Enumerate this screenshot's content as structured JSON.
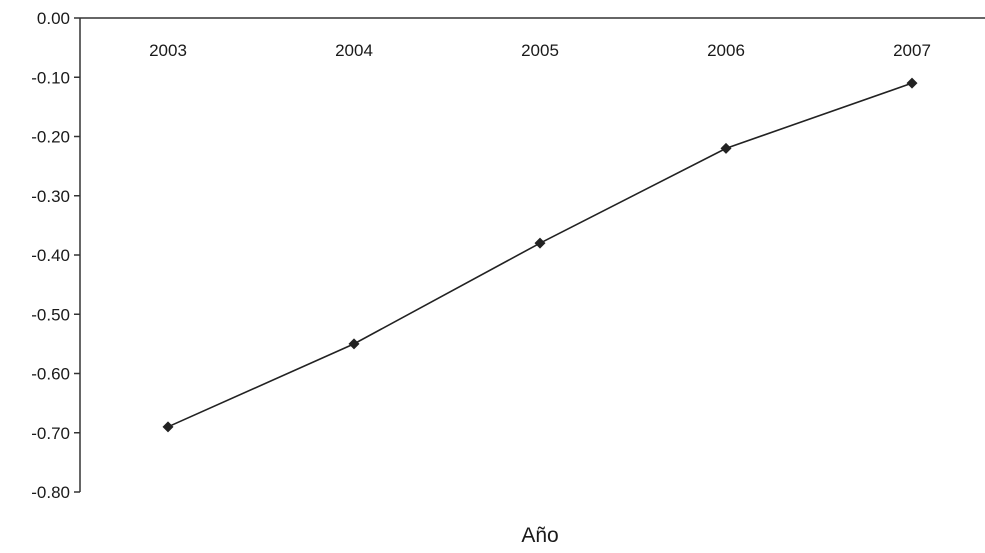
{
  "chart_data": {
    "type": "line",
    "title": "",
    "xlabel": "Año",
    "ylabel": "",
    "categories": [
      "2003",
      "2004",
      "2005",
      "2006",
      "2007"
    ],
    "series": [
      {
        "values": [
          -0.69,
          -0.55,
          -0.38,
          -0.22,
          -0.11
        ]
      }
    ],
    "y_ticks": [
      "0.00",
      "-0.10",
      "-0.20",
      "-0.30",
      "-0.40",
      "-0.50",
      "-0.60",
      "-0.70",
      "-0.80"
    ],
    "ylim": [
      -0.8,
      0.0
    ],
    "grid": false,
    "x_axis_position": "top",
    "marker": "diamond",
    "line_color": "#222222"
  }
}
